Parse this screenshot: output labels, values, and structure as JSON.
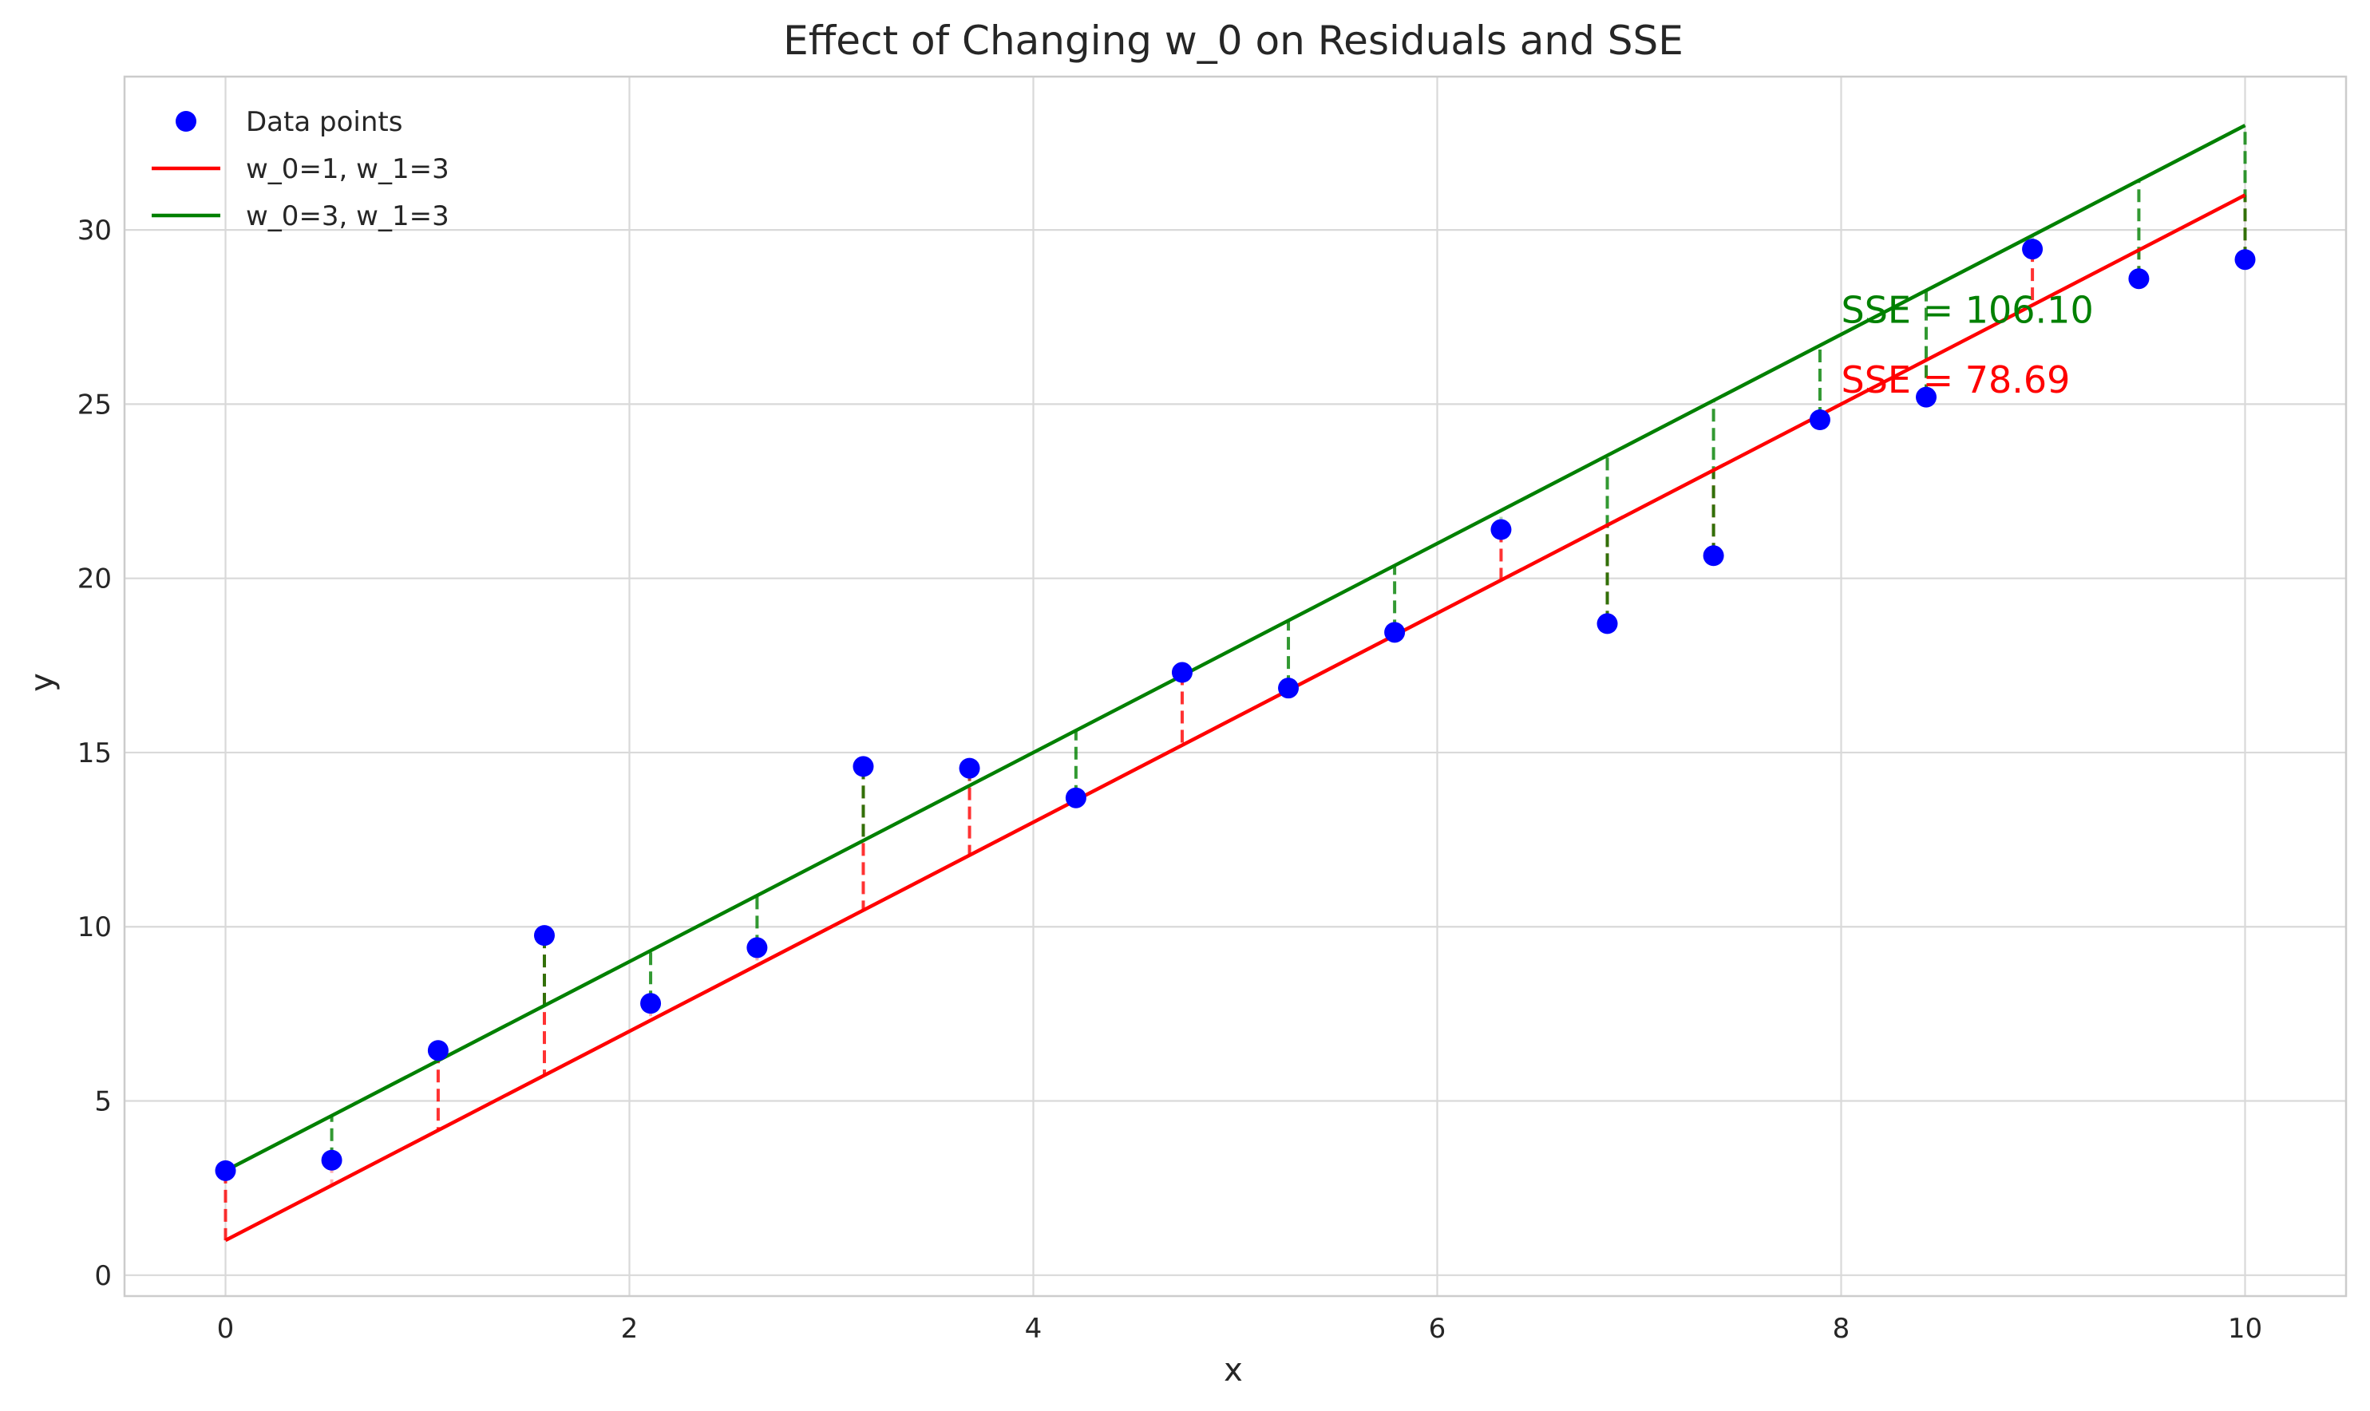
{
  "chart_data": {
    "type": "scatter",
    "title": "Effect of Changing w_0 on Residuals and SSE",
    "xlabel": "x",
    "ylabel": "y",
    "xlim": [
      -0.5,
      10.5
    ],
    "ylim": [
      -0.6,
      34.4
    ],
    "x_ticks": [
      0,
      2,
      4,
      6,
      8,
      10
    ],
    "y_ticks": [
      0,
      5,
      10,
      15,
      20,
      25,
      30
    ],
    "grid": true,
    "legend_position": "top-left",
    "points": {
      "name": "Data points",
      "color": "#0000ff",
      "x": [
        0,
        0.526,
        1.053,
        1.579,
        2.105,
        2.632,
        3.158,
        3.684,
        4.211,
        4.737,
        5.263,
        5.789,
        6.316,
        6.842,
        7.368,
        7.895,
        8.421,
        8.947,
        9.474,
        10
      ],
      "y": [
        3.0,
        3.3,
        6.45,
        9.75,
        7.8,
        9.4,
        14.6,
        14.55,
        13.7,
        17.3,
        16.85,
        18.45,
        21.4,
        18.7,
        20.65,
        24.55,
        25.2,
        29.45,
        28.6,
        29.15
      ]
    },
    "series": [
      {
        "name": "w_0=1, w_1=3",
        "color": "#ff0000",
        "w0": 1,
        "w1": 3,
        "sse_label": "SSE = 78.69"
      },
      {
        "name": "w_0=3, w_1=3",
        "color": "#008000",
        "w0": 3,
        "w1": 3,
        "sse_label": "SSE = 106.10"
      }
    ],
    "annotations": [
      {
        "text": "SSE = 106.10",
        "x": 8.0,
        "y": 27.7,
        "color": "#008000"
      },
      {
        "text": "SSE = 78.69",
        "x": 8.0,
        "y": 25.7,
        "color": "#ff0000"
      }
    ]
  }
}
